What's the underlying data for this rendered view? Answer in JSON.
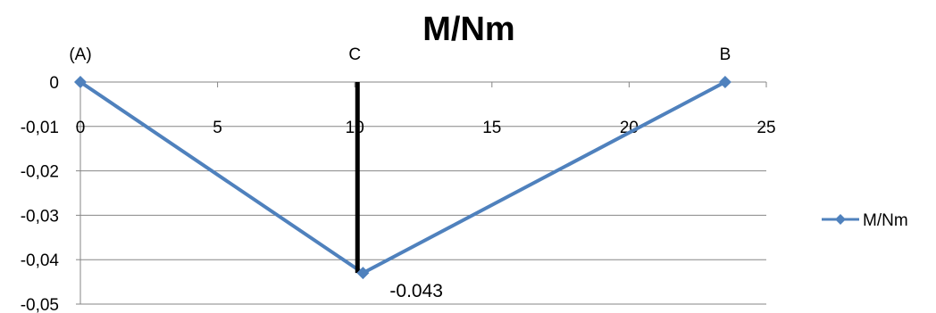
{
  "chart_data": {
    "type": "line",
    "title": "M/Nm",
    "xlim": [
      0,
      25
    ],
    "ylim": [
      -0.05,
      0
    ],
    "x_ticks": [
      {
        "value": 0,
        "label": "0"
      },
      {
        "value": 5,
        "label": "5"
      },
      {
        "value": 10,
        "label": "10"
      },
      {
        "value": 15,
        "label": "15"
      },
      {
        "value": 20,
        "label": "20"
      },
      {
        "value": 25,
        "label": "25"
      }
    ],
    "y_ticks": [
      {
        "value": 0,
        "label": "0"
      },
      {
        "value": -0.01,
        "label": "-0,01"
      },
      {
        "value": -0.02,
        "label": "-0,02"
      },
      {
        "value": -0.03,
        "label": "-0,03"
      },
      {
        "value": -0.04,
        "label": "-0,04"
      },
      {
        "value": -0.05,
        "label": "-0,05"
      }
    ],
    "grid": true,
    "legend": {
      "position": "right",
      "entries": [
        "M/Nm"
      ]
    },
    "series": [
      {
        "name": "M/Nm",
        "color": "#4f81bd",
        "marker": "diamond",
        "x": [
          0,
          10.3,
          23.5
        ],
        "y": [
          0,
          -0.043,
          0
        ]
      }
    ],
    "data_labels": [
      {
        "x": 10.3,
        "y": -0.043,
        "text": "-0.043"
      }
    ],
    "point_labels": [
      {
        "x": 0,
        "text": "(A)"
      },
      {
        "x": 10,
        "text": "C"
      },
      {
        "x": 23.5,
        "text": "B"
      }
    ],
    "vertical_line": {
      "x": 10.1,
      "y_from": 0,
      "y_to": -0.043,
      "color": "#000000"
    }
  }
}
